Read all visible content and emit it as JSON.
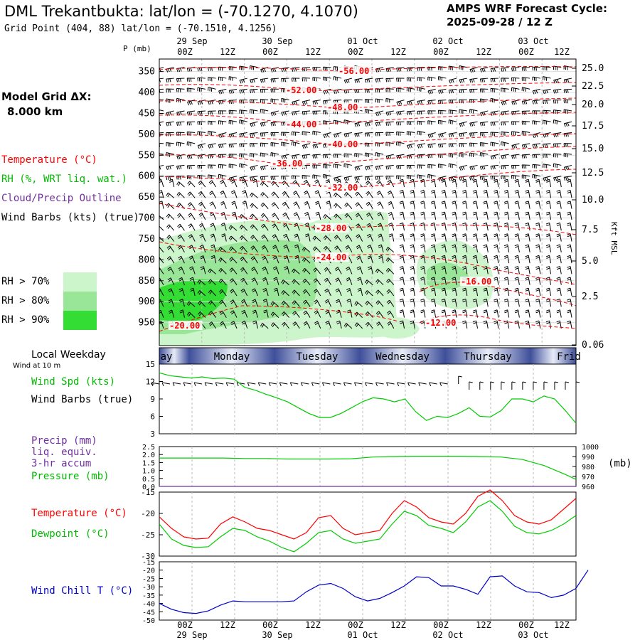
{
  "header": {
    "title": "DML Trekantbukta:  lat/lon = (-70.1270, 4.1070)",
    "grid_point": "Grid Point (404, 88) lat/lon = (-70.1510, 4.1256)",
    "cycle_line1": "AMPS WRF Forecast Cycle:",
    "cycle_line2": "2025-09-28 / 12  Z",
    "model_grid_label": "Model Grid ΔX:",
    "model_grid_value": "8.000 km"
  },
  "time_axis": {
    "hour_labels": [
      "00Z",
      "12Z",
      "00Z",
      "12Z",
      "00Z",
      "12Z",
      "00Z",
      "12Z",
      "00Z",
      "12Z"
    ],
    "date_labels": [
      "29 Sep",
      "30 Sep",
      "01 Oct",
      "02 Oct",
      "03 Oct"
    ],
    "weekdays": [
      "ay",
      "Monday",
      "Tuesday",
      "Wednesday",
      "Thursday",
      "Frid"
    ],
    "weekday_label": "Local Weekday",
    "wind10_label": "Wind at 10 m"
  },
  "legend": {
    "temperature": "Temperature (°C)",
    "rh": "RH (%, WRT liq. wat.)",
    "cloud": "Cloud/Precip Outline",
    "wind": "Wind Barbs (kts) (true)",
    "rh70": "RH > 70%",
    "rh80": "RH > 80%",
    "rh90": "RH > 90%"
  },
  "colors": {
    "temperature": "#ff0000",
    "dewpoint": "#00cc00",
    "wind_speed": "#00cc00",
    "pressure": "#00cc00",
    "precip": "#7030a0",
    "wind_chill": "#0000cc",
    "rh70": "#ccf5cc",
    "rh80": "#99e699",
    "rh90": "#33dd33",
    "weekday_band": "#3f4f9a"
  },
  "chart_data": [
    {
      "type": "heatmap",
      "title": "",
      "ylabel": "P (mb)",
      "ylabel_right": "Kft MSL",
      "pressure_ticks": [
        "350",
        "400",
        "450",
        "500",
        "550",
        "600",
        "650",
        "700",
        "750",
        "800",
        "850",
        "900",
        "950"
      ],
      "height_ticks": [
        "25.0",
        "22.5",
        "20.0",
        "17.5",
        "15.0",
        "12.5",
        "10.0",
        "7.5",
        "5.0",
        "2.5",
        "0.06"
      ],
      "temperature_contour_labels": [
        "-56.00",
        "-52.00",
        "-48.00",
        "-44.00",
        "-40.00",
        "-36.00",
        "-32.00",
        "-28.00",
        "-24.00",
        "-20.00",
        "-16.00",
        "-12.00"
      ]
    },
    {
      "type": "line",
      "series_label": "Wind Spd (kts)",
      "barbs_label": "Wind Barbs (true)",
      "ylim": [
        3,
        15
      ],
      "yticks": [
        "15",
        "12",
        "9",
        "6",
        "3"
      ],
      "x_hours": [
        0,
        3,
        6,
        9,
        12,
        15,
        18,
        21,
        24,
        27,
        30,
        33,
        36,
        39,
        42,
        45,
        48,
        51,
        54,
        57,
        60,
        63,
        66,
        69,
        72,
        75,
        78,
        81,
        84,
        87,
        90,
        93,
        96,
        99,
        102,
        105,
        108,
        111,
        114,
        117
      ],
      "values": [
        13.5,
        13.0,
        12.8,
        12.6,
        12.8,
        12.5,
        12.6,
        12.4,
        11.0,
        10.5,
        9.8,
        9.2,
        8.5,
        7.5,
        6.5,
        5.8,
        5.8,
        6.5,
        7.5,
        8.5,
        9.2,
        9.0,
        8.5,
        9.0,
        6.8,
        5.3,
        6.0,
        5.8,
        6.5,
        7.5,
        6.0,
        5.9,
        7.0,
        9.0,
        9.0,
        8.5,
        9.5,
        9.0,
        7.0,
        4.8
      ]
    },
    {
      "type": "line",
      "series_labels": [
        "Precip (mm)",
        "liq. equiv.",
        "3-hr accum",
        "Pressure (mb)"
      ],
      "precip_yticks": [
        "2.5",
        "2.0",
        "1.5",
        "1.0",
        "0.5",
        "0.0"
      ],
      "pressure_yticks": [
        "1000",
        "990",
        "980",
        "970",
        "960"
      ],
      "pressure_unit": "(mb)",
      "precip_ylim": [
        0,
        2.5
      ],
      "pressure_ylim": [
        960,
        1000
      ],
      "x_hours": [
        0,
        6,
        12,
        18,
        24,
        30,
        36,
        42,
        48,
        54,
        60,
        66,
        72,
        78,
        84,
        90,
        96,
        102,
        108,
        114,
        117
      ],
      "pressure_values": [
        988.5,
        988.5,
        988.5,
        988.5,
        988.0,
        988.0,
        987.5,
        987.5,
        987.5,
        987.8,
        989.5,
        990.0,
        990.3,
        990.3,
        990.3,
        990.0,
        989.5,
        987.0,
        981.0,
        972.0,
        967.0
      ],
      "precip_values": [
        0.0,
        0.0,
        0.0,
        0.0,
        0.0,
        0.0,
        0.0,
        0.0,
        0.0,
        0.0,
        0.0,
        0.0,
        0.0,
        0.0,
        0.0,
        0.0,
        0.0,
        0.0,
        0.0,
        0.0,
        0.0
      ]
    },
    {
      "type": "line",
      "series": [
        {
          "name": "Temperature (°C)",
          "values": [
            -20.8,
            -23.5,
            -25.5,
            -26.0,
            -25.8,
            -22.5,
            -20.8,
            -22.0,
            -23.5,
            -24.0,
            -25.0,
            -26.0,
            -24.5,
            -21.0,
            -20.5,
            -23.5,
            -25.0,
            -24.5,
            -24.0,
            -20.0,
            -17.0,
            -18.5,
            -21.0,
            -22.0,
            -22.5,
            -20.0,
            -16.0,
            -14.5,
            -17.0,
            -20.5,
            -22.0,
            -22.5,
            -21.5,
            -19.0,
            -16.5
          ]
        },
        {
          "name": "Dewpoint (°C)",
          "values": [
            -22.5,
            -26.0,
            -27.5,
            -28.0,
            -27.8,
            -25.5,
            -23.5,
            -24.0,
            -25.5,
            -26.5,
            -28.0,
            -29.0,
            -27.0,
            -24.5,
            -24.0,
            -26.0,
            -27.0,
            -26.5,
            -26.0,
            -22.5,
            -19.5,
            -20.5,
            -22.8,
            -23.5,
            -24.5,
            -22.0,
            -18.5,
            -17.0,
            -19.5,
            -23.0,
            -24.5,
            -24.8,
            -24.0,
            -22.5,
            -20.5
          ]
        }
      ],
      "x_step_hours": 3.44,
      "ylim": [
        -30,
        -15
      ],
      "yticks": [
        "-15",
        "-20",
        "-25",
        "-30"
      ]
    },
    {
      "type": "line",
      "series_label": "Wind Chill T (°C)",
      "ylim": [
        -50,
        -15
      ],
      "yticks": [
        "-15",
        "-20",
        "-25",
        "-30",
        "-35",
        "-40",
        "-45",
        "-50"
      ],
      "x_step_hours": 3.44,
      "values": [
        -40.0,
        -43.5,
        -45.5,
        -46.0,
        -44.5,
        -41.0,
        -38.5,
        -39.0,
        -39.0,
        -39.0,
        -39.0,
        -38.5,
        -33.0,
        -29.0,
        -28.0,
        -31.0,
        -36.0,
        -38.5,
        -37.0,
        -33.5,
        -29.5,
        -24.0,
        -24.5,
        -29.5,
        -29.5,
        -31.5,
        -34.5,
        -24.0,
        -23.5,
        -29.5,
        -33.0,
        -33.5,
        -36.5,
        -35.0,
        -31.0,
        -20.0
      ]
    }
  ]
}
